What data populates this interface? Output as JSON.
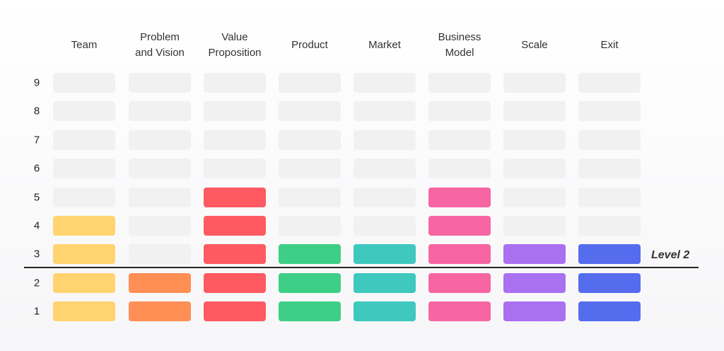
{
  "columns": [
    {
      "label": "Team",
      "level": 4,
      "color": "#ffd470"
    },
    {
      "label": "Problem\nand Vision",
      "level": 2,
      "color": "#ff8f55"
    },
    {
      "label": "Value\nProposition",
      "level": 5,
      "color": "#ff5a61"
    },
    {
      "label": "Product",
      "level": 3,
      "color": "#3dcf85"
    },
    {
      "label": "Market",
      "level": 3,
      "color": "#3fc8be"
    },
    {
      "label": "Business\nModel",
      "level": 5,
      "color": "#f765a3"
    },
    {
      "label": "Scale",
      "level": 3,
      "color": "#a970f0"
    },
    {
      "label": "Exit",
      "level": 3,
      "color": "#566cee"
    }
  ],
  "rows": [
    "9",
    "8",
    "7",
    "6",
    "5",
    "4",
    "3",
    "2",
    "1"
  ],
  "empty_color": "#f1f1f1",
  "divider_color": "#222222",
  "level_label": "Level 2"
}
